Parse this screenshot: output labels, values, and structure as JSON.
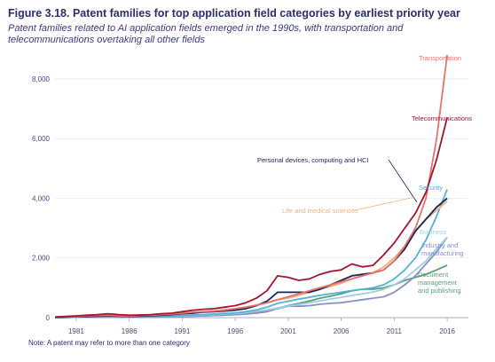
{
  "header": {
    "title": "Figure 3.18. Patent families for top application field categories by earliest priority year",
    "subtitle": "Patent families related to AI application fields emerged in the 1990s, with transportation and telecommunications overtaking all other fields"
  },
  "note": "Note: A patent may refer to more than one category",
  "chart_data": {
    "type": "line",
    "title": "Figure 3.18. Patent families for top application field categories by earliest priority year",
    "xlim": [
      1979,
      2018
    ],
    "ylim": [
      0,
      8800
    ],
    "x_ticks": [
      1981,
      1986,
      1991,
      1996,
      2001,
      2006,
      2011,
      2016
    ],
    "y_ticks": [
      0,
      2000,
      4000,
      6000,
      8000
    ],
    "y_tick_labels": [
      "0",
      "2,000",
      "4,000",
      "6,000",
      "8,000"
    ],
    "x": [
      1979,
      1980,
      1981,
      1982,
      1983,
      1984,
      1985,
      1986,
      1987,
      1988,
      1989,
      1990,
      1991,
      1992,
      1993,
      1994,
      1995,
      1996,
      1997,
      1998,
      1999,
      2000,
      2001,
      2002,
      2003,
      2004,
      2005,
      2006,
      2007,
      2008,
      2009,
      2010,
      2011,
      2012,
      2013,
      2014,
      2015,
      2016
    ],
    "series": [
      {
        "name": "Transportation",
        "color": "#e8706a",
        "values": [
          20,
          30,
          40,
          60,
          70,
          80,
          60,
          50,
          70,
          80,
          100,
          120,
          150,
          180,
          200,
          220,
          250,
          300,
          350,
          420,
          500,
          600,
          700,
          800,
          900,
          1000,
          1100,
          1200,
          1300,
          1400,
          1500,
          1600,
          1900,
          2400,
          3000,
          4000,
          6000,
          8800
        ]
      },
      {
        "name": "Telecommunications",
        "color": "#a3152d",
        "values": [
          20,
          40,
          60,
          80,
          100,
          130,
          100,
          80,
          90,
          100,
          130,
          150,
          200,
          250,
          280,
          300,
          350,
          400,
          500,
          650,
          900,
          1400,
          1350,
          1250,
          1300,
          1450,
          1550,
          1600,
          1800,
          1700,
          1750,
          2100,
          2500,
          3000,
          3500,
          4200,
          5300,
          6700
        ]
      },
      {
        "name": "Personal devices, computing and HCI",
        "color": "#1b2559",
        "values": [
          10,
          20,
          30,
          40,
          50,
          60,
          50,
          40,
          50,
          60,
          80,
          100,
          130,
          150,
          180,
          200,
          220,
          250,
          300,
          400,
          550,
          850,
          850,
          850,
          850,
          950,
          1100,
          1250,
          1400,
          1450,
          1500,
          1600,
          1900,
          2300,
          2900,
          3300,
          3700,
          4000
        ]
      },
      {
        "name": "Security",
        "color": "#4fb3d9",
        "values": [
          5,
          10,
          15,
          20,
          25,
          30,
          25,
          20,
          25,
          30,
          40,
          50,
          70,
          90,
          100,
          120,
          140,
          160,
          200,
          260,
          350,
          480,
          550,
          620,
          680,
          750,
          800,
          850,
          900,
          950,
          1000,
          1100,
          1300,
          1600,
          2000,
          2600,
          3400,
          4300
        ]
      },
      {
        "name": "Life and medical sciences",
        "color": "#f2b07a",
        "values": [
          20,
          30,
          40,
          50,
          60,
          70,
          60,
          50,
          60,
          70,
          90,
          110,
          140,
          170,
          200,
          230,
          270,
          300,
          350,
          420,
          500,
          600,
          650,
          750,
          850,
          950,
          1050,
          1150,
          1300,
          1400,
          1500,
          1700,
          2000,
          2400,
          2900,
          3300,
          3600,
          3900
        ]
      },
      {
        "name": "Business",
        "color": "#9ecfe6",
        "values": [
          5,
          10,
          15,
          20,
          25,
          30,
          25,
          20,
          25,
          30,
          35,
          45,
          55,
          70,
          85,
          100,
          120,
          140,
          170,
          210,
          260,
          320,
          380,
          440,
          500,
          560,
          620,
          680,
          740,
          800,
          860,
          950,
          1100,
          1300,
          1600,
          1900,
          2300,
          2700
        ]
      },
      {
        "name": "Industry and manufacturing",
        "color": "#8a8fc0",
        "values": [
          5,
          10,
          12,
          15,
          18,
          20,
          18,
          15,
          18,
          20,
          25,
          30,
          40,
          50,
          60,
          70,
          85,
          100,
          120,
          150,
          200,
          300,
          380,
          380,
          400,
          450,
          480,
          500,
          550,
          600,
          650,
          700,
          850,
          1100,
          1400,
          1800,
          2200,
          2700
        ]
      },
      {
        "name": "Document management and publishing",
        "color": "#5a9e79",
        "values": [
          5,
          10,
          12,
          15,
          18,
          20,
          18,
          15,
          18,
          20,
          25,
          30,
          40,
          50,
          60,
          70,
          85,
          100,
          130,
          170,
          230,
          320,
          400,
          480,
          560,
          650,
          720,
          800,
          900,
          950,
          950,
          1000,
          1100,
          1250,
          1350,
          1450,
          1600,
          1750
        ]
      }
    ],
    "legend": "inline labels at line ends",
    "grid": "horizontal"
  }
}
